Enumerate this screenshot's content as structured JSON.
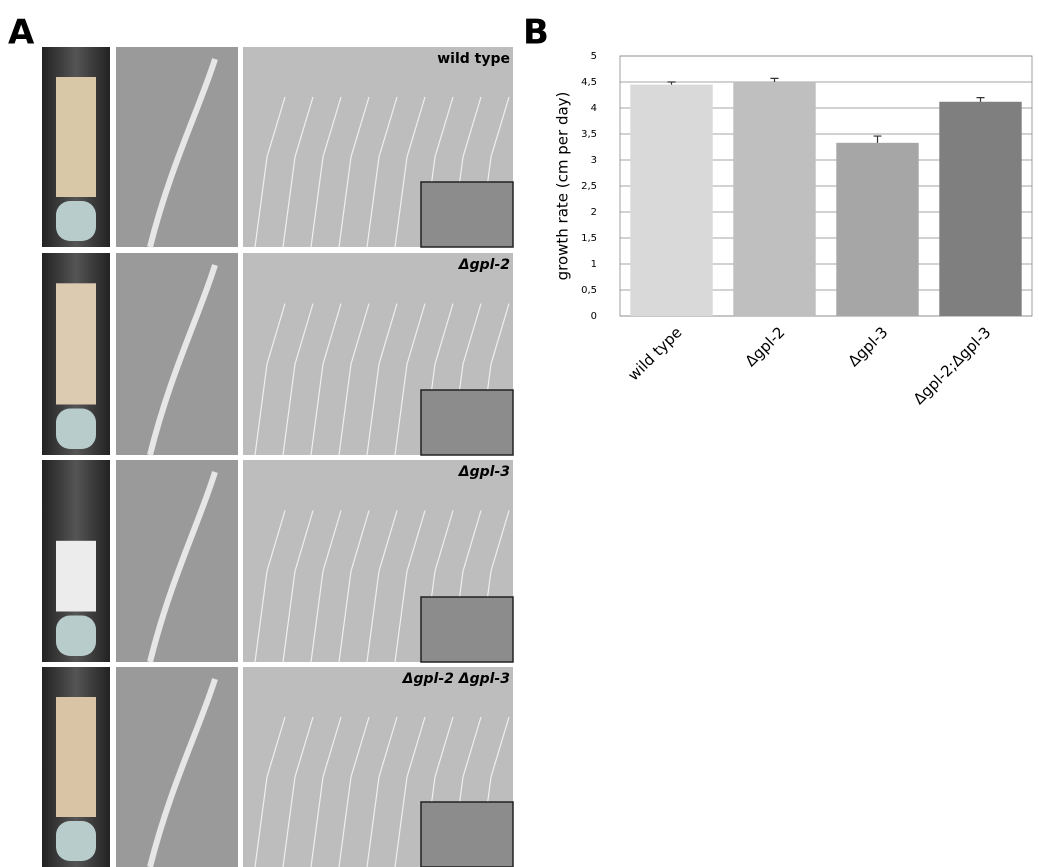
{
  "panel_a": {
    "label": "A",
    "rows": [
      "wild type",
      "Δgpl-2",
      "Δgpl-3",
      "Δgpl-2 Δgpl-3"
    ]
  },
  "panel_b": {
    "label": "B"
  },
  "chart_data": {
    "type": "bar",
    "y_label": "growth rate (cm per day)",
    "categories": [
      "wild type",
      "Δgpl-2",
      "Δgpl-3",
      "Δgpl-2;Δgpl-3"
    ],
    "values": [
      4.45,
      4.5,
      3.33,
      4.12
    ],
    "errors": [
      0.05,
      0.07,
      0.13,
      0.08
    ],
    "colors": [
      "#d9d9d9",
      "#bfbfbf",
      "#a6a6a6",
      "#7f7f7f"
    ],
    "ylim": [
      0,
      5
    ],
    "yticks": [
      0,
      {
        "value": 0.5,
        "label": "0,5"
      },
      1,
      {
        "value": 1.5,
        "label": "1,5"
      },
      2,
      {
        "value": 2.5,
        "label": "2,5"
      },
      3,
      {
        "value": 3.5,
        "label": "3,5"
      },
      4,
      {
        "value": 4.5,
        "label": "4,5"
      },
      5
    ],
    "grid": true
  }
}
